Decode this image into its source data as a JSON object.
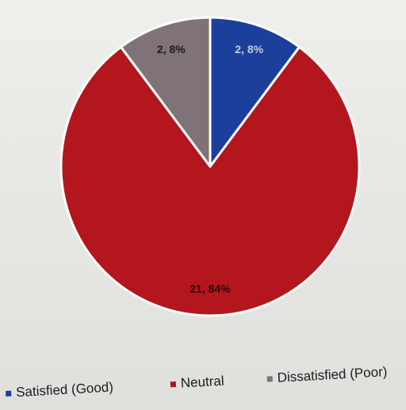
{
  "chart_data": {
    "type": "pie",
    "slices": [
      {
        "name": "Satisfied (Good)",
        "value": 2.8,
        "label": "2, 8%",
        "color": "#1d3f9c"
      },
      {
        "name": "Neutral",
        "value": 21.84,
        "label": "21, 84%",
        "color": "#b3161d"
      },
      {
        "name": "Dissatisfied (Poor)",
        "value": 2.8,
        "label": "2, 8%",
        "color": "#7f7378"
      }
    ],
    "legend_placement": "bottom"
  }
}
